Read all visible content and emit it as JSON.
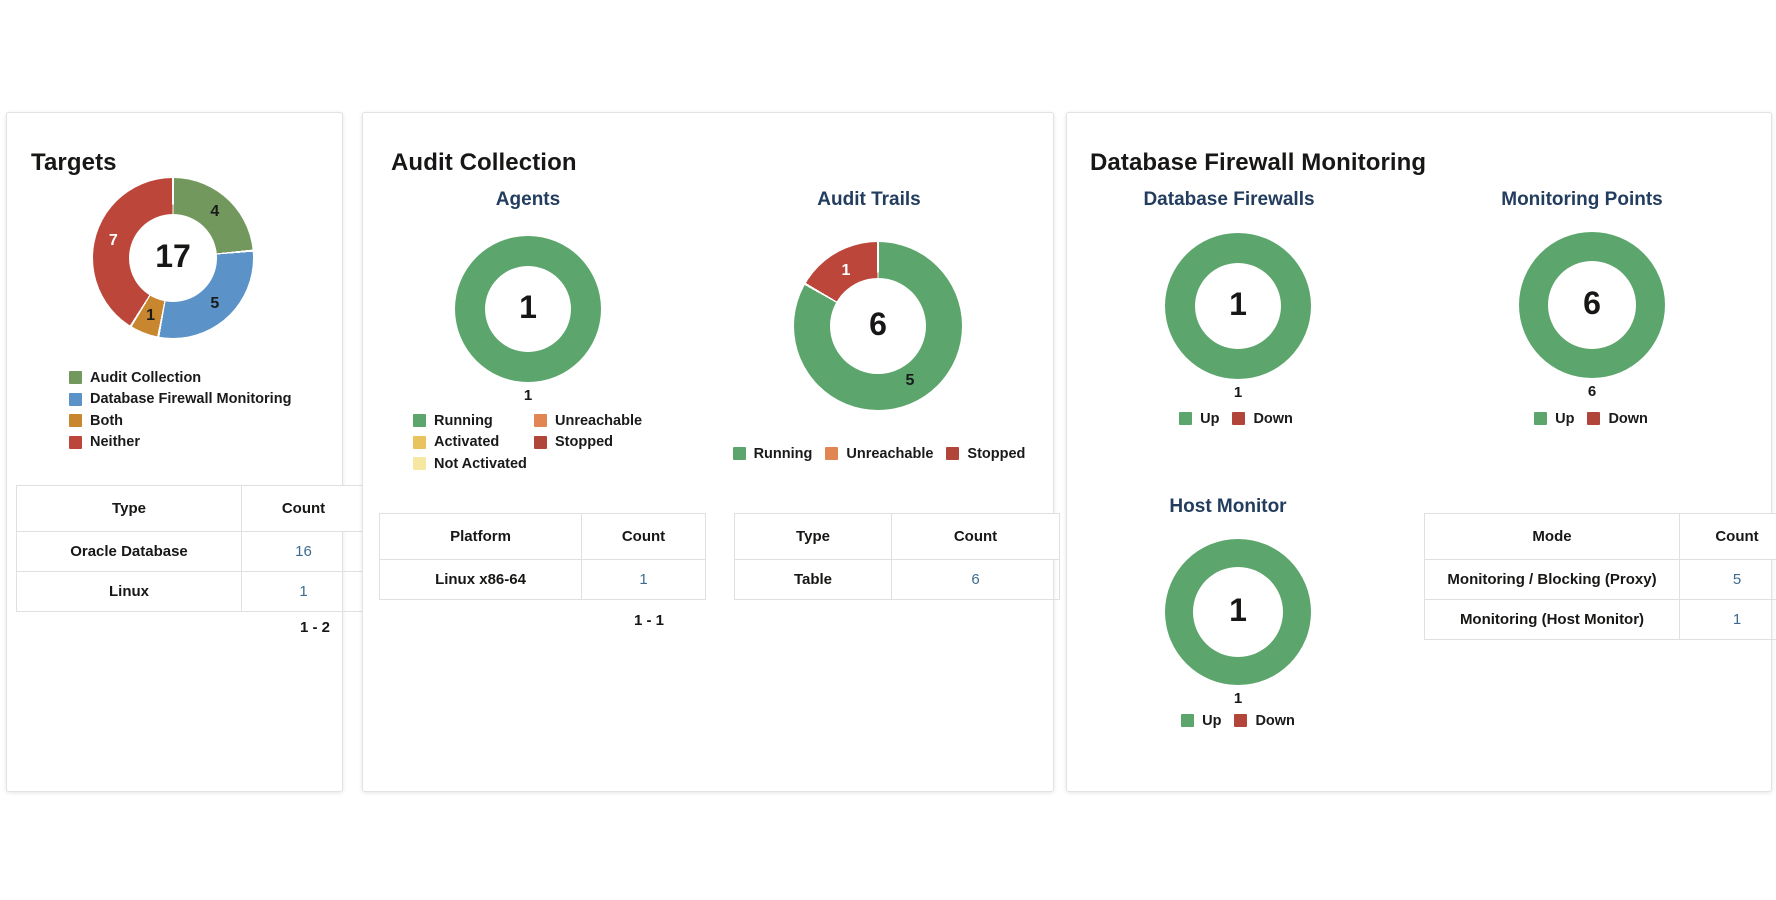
{
  "colors": {
    "green_muted": "#72985E",
    "blue": "#5B92C8",
    "orange_dark": "#C8872E",
    "red": "#BC4639",
    "green_bright": "#5CA66D",
    "orange": "#E18552",
    "amber": "#E9C35E",
    "pale_yellow": "#F6E8A2",
    "red_dark": "#B2453A",
    "navy_title": "#233D5F",
    "count_link_blue": "#3D6B8F"
  },
  "cards": {
    "targets": {
      "title": "Targets",
      "legend": [
        {
          "label": "Audit Collection",
          "color": "#72985E"
        },
        {
          "label": "Database Firewall Monitoring",
          "color": "#5B92C8"
        },
        {
          "label": "Both",
          "color": "#C8872E"
        },
        {
          "label": "Neither",
          "color": "#BC4639"
        }
      ],
      "table": {
        "columns": [
          "Type",
          "Count"
        ],
        "rows": [
          [
            "Oracle Database",
            "16"
          ],
          [
            "Linux",
            "1"
          ]
        ]
      },
      "pagination": "1 - 2"
    },
    "audit_collection": {
      "title": "Audit Collection",
      "agents": {
        "subtitle": "Agents",
        "legend": [
          {
            "label": "Running",
            "color": "#5CA66D"
          },
          {
            "label": "Activated",
            "color": "#E9C35E"
          },
          {
            "label": "Not Activated",
            "color": "#F6E8A2"
          },
          {
            "label": "Unreachable",
            "color": "#E18552"
          },
          {
            "label": "Stopped",
            "color": "#B2453A"
          }
        ],
        "table": {
          "columns": [
            "Platform",
            "Count"
          ],
          "rows": [
            [
              "Linux x86-64",
              "1"
            ]
          ]
        },
        "pagination": "1 - 1"
      },
      "audit_trails": {
        "subtitle": "Audit Trails",
        "legend": [
          {
            "label": "Running",
            "color": "#5CA66D"
          },
          {
            "label": "Unreachable",
            "color": "#E18552"
          },
          {
            "label": "Stopped",
            "color": "#B2453A"
          }
        ],
        "table": {
          "columns": [
            "Type",
            "Count"
          ],
          "rows": [
            [
              "Table",
              "6"
            ]
          ]
        }
      }
    },
    "db_firewall_monitoring": {
      "title": "Database Firewall Monitoring",
      "database_firewalls": {
        "subtitle": "Database Firewalls",
        "legend": [
          {
            "label": "Up",
            "color": "#5CA66D"
          },
          {
            "label": "Down",
            "color": "#B2453A"
          }
        ]
      },
      "monitoring_points": {
        "subtitle": "Monitoring Points",
        "legend": [
          {
            "label": "Up",
            "color": "#5CA66D"
          },
          {
            "label": "Down",
            "color": "#B2453A"
          }
        ]
      },
      "host_monitor": {
        "subtitle": "Host Monitor",
        "legend": [
          {
            "label": "Up",
            "color": "#5CA66D"
          },
          {
            "label": "Down",
            "color": "#B2453A"
          }
        ]
      },
      "table": {
        "columns": [
          "Mode",
          "Count"
        ],
        "rows": [
          [
            "Monitoring / Blocking (Proxy)",
            "5"
          ],
          [
            "Monitoring (Host Monitor)",
            "1"
          ]
        ]
      }
    }
  },
  "chart_data": [
    {
      "type": "donut",
      "title": "Targets",
      "total": 17,
      "center_label": "17",
      "below_label": null,
      "segments": [
        {
          "name": "Audit Collection",
          "value": 4,
          "color": "#72985E",
          "slice_label": "4",
          "slice_label_color": "#1a1a1a"
        },
        {
          "name": "Database Firewall Monitoring",
          "value": 5,
          "color": "#5B92C8",
          "slice_label": "5",
          "slice_label_color": "#1a1a1a"
        },
        {
          "name": "Both",
          "value": 1,
          "color": "#C8872E",
          "slice_label": "1",
          "slice_label_color": "#1a1a1a"
        },
        {
          "name": "Neither",
          "value": 7,
          "color": "#BC4639",
          "slice_label": "7",
          "slice_label_color": "#ffffff"
        }
      ]
    },
    {
      "type": "donut",
      "title": "Agents",
      "total": 1,
      "center_label": "1",
      "below_label": "1",
      "segments": [
        {
          "name": "Running",
          "value": 1,
          "color": "#5CA66D",
          "slice_label": null
        }
      ]
    },
    {
      "type": "donut",
      "title": "Audit Trails",
      "total": 6,
      "center_label": "6",
      "below_label": null,
      "segments": [
        {
          "name": "Running",
          "value": 5,
          "color": "#5CA66D",
          "slice_label": "5",
          "slice_label_color": "#1a1a1a"
        },
        {
          "name": "Stopped",
          "value": 1,
          "color": "#BC4639",
          "slice_label": "1",
          "slice_label_color": "#ffffff"
        }
      ]
    },
    {
      "type": "donut",
      "title": "Database Firewalls",
      "total": 1,
      "center_label": "1",
      "below_label": "1",
      "segments": [
        {
          "name": "Up",
          "value": 1,
          "color": "#5CA66D",
          "slice_label": null
        }
      ]
    },
    {
      "type": "donut",
      "title": "Monitoring Points",
      "total": 6,
      "center_label": "6",
      "below_label": "6",
      "segments": [
        {
          "name": "Up",
          "value": 6,
          "color": "#5CA66D",
          "slice_label": null
        }
      ]
    },
    {
      "type": "donut",
      "title": "Host Monitor",
      "total": 1,
      "center_label": "1",
      "below_label": "1",
      "segments": [
        {
          "name": "Up",
          "value": 1,
          "color": "#5CA66D",
          "slice_label": null
        }
      ]
    }
  ]
}
